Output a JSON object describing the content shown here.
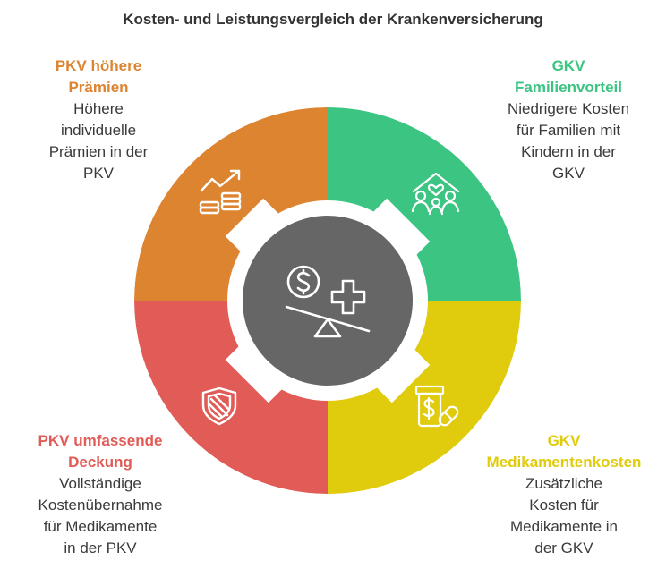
{
  "title": "Kosten- und Leistungsvergleich der Krankenversicherung",
  "colors": {
    "orange": "#DD8431",
    "green": "#3CC483",
    "red": "#E15B57",
    "yellow": "#E0CB0C",
    "center": "#666666"
  },
  "quadrants": {
    "top_left": {
      "head_line1": "PKV höhere",
      "head_line2": "Prämien",
      "body_lines": [
        "Höhere",
        "individuelle",
        "Prämien in der",
        "PKV"
      ],
      "icon": "trend-up-coins-icon"
    },
    "top_right": {
      "head_line1": "GKV",
      "head_line2": "Familienvorteil",
      "body_lines": [
        "Niedrigere Kosten",
        "für Familien mit",
        "Kindern in der",
        "GKV"
      ],
      "icon": "family-home-icon"
    },
    "bottom_left": {
      "head_line1": "PKV umfassende",
      "head_line2": "Deckung",
      "body_lines": [
        "Vollständige",
        "Kostenübernahme",
        "für Medikamente",
        "in der PKV"
      ],
      "icon": "shield-icon"
    },
    "bottom_right": {
      "head_line1": "GKV",
      "head_line2": "Medikamentenkosten",
      "body_lines": [
        "Zusätzliche",
        "Kosten für",
        "Medikamente in",
        "der GKV"
      ],
      "icon": "medicine-bottle-icon"
    }
  },
  "center_icon": "dollar-health-balance-icon"
}
